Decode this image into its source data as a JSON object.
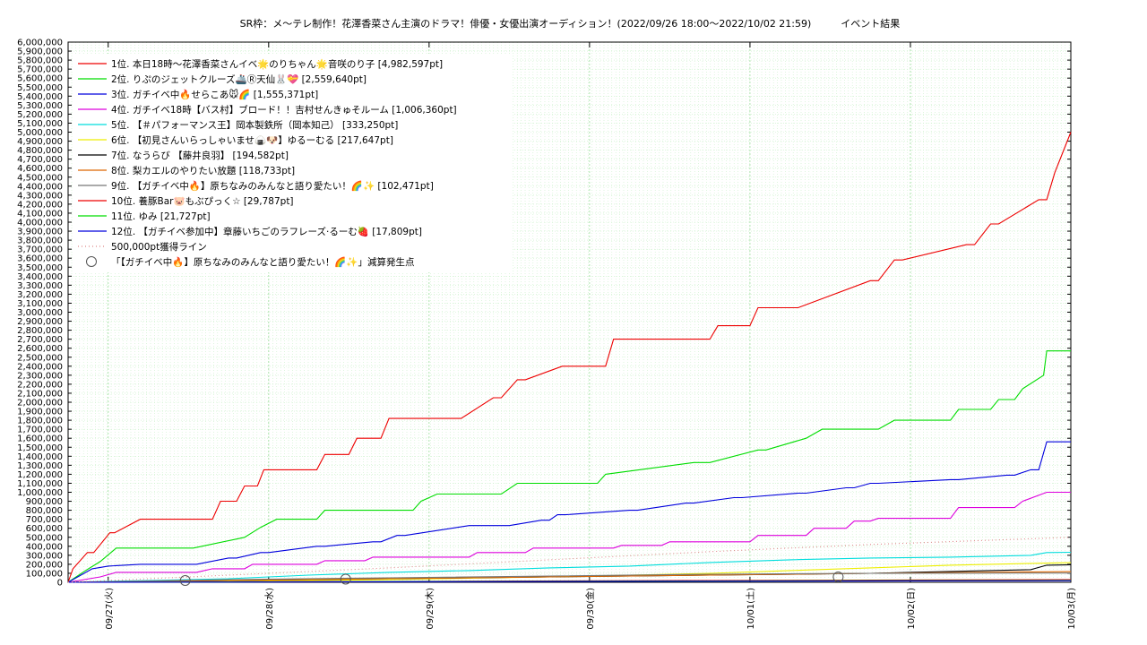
{
  "chart_data": {
    "type": "line",
    "title": "SR枠：メ〜テレ制作！花澤香菜さん主演のドラマ！俳優・女優出演オーディション！(2022/09/26 18:00〜2022/10/02 21:59)　　　イベント結果",
    "ylim": [
      0,
      6000000
    ],
    "yticks": [
      "0",
      "100,000",
      "200,000",
      "300,000",
      "400,000",
      "500,000",
      "600,000",
      "700,000",
      "800,000",
      "900,000",
      "1,000,000",
      "1,100,000",
      "1,200,000",
      "1,300,000",
      "1,400,000",
      "1,500,000",
      "1,600,000",
      "1,700,000",
      "1,800,000",
      "1,900,000",
      "2,000,000",
      "2,100,000",
      "2,200,000",
      "2,300,000",
      "2,400,000",
      "2,500,000",
      "2,600,000",
      "2,700,000",
      "2,800,000",
      "2,900,000",
      "3,000,000",
      "3,100,000",
      "3,200,000",
      "3,300,000",
      "3,400,000",
      "3,500,000",
      "3,600,000",
      "3,700,000",
      "3,800,000",
      "3,900,000",
      "4,000,000",
      "4,100,000",
      "4,200,000",
      "4,300,000",
      "4,400,000",
      "4,500,000",
      "4,600,000",
      "4,700,000",
      "4,800,000",
      "4,900,000",
      "5,000,000",
      "5,100,000",
      "5,200,000",
      "5,300,000",
      "5,400,000",
      "5,500,000",
      "5,600,000",
      "5,700,000",
      "5,800,000",
      "5,900,000",
      "6,000,000"
    ],
    "xlim": [
      0,
      6.25
    ],
    "xticks": [
      {
        "x": 0.25,
        "label": "09/27(火)"
      },
      {
        "x": 1.25,
        "label": "09/28(水)"
      },
      {
        "x": 2.25,
        "label": "09/29(木)"
      },
      {
        "x": 3.25,
        "label": "09/30(金)"
      },
      {
        "x": 4.25,
        "label": "10/01(土)"
      },
      {
        "x": 5.25,
        "label": "10/02(日)"
      },
      {
        "x": 6.25,
        "label": "10/03(月)"
      }
    ],
    "grid": true,
    "legend_position": "top-left",
    "series": [
      {
        "name": "1位. 本日18時〜花澤香菜さんイベ🌟のりちゃん🌟音咲のり子 [4,982,597pt]",
        "color": "#ee0000",
        "step": true,
        "x": [
          0,
          0.03,
          0.12,
          0.16,
          0.26,
          0.29,
          0.45,
          0.9,
          0.95,
          1.05,
          1.1,
          1.18,
          1.22,
          1.55,
          1.6,
          1.75,
          1.8,
          1.95,
          2.0,
          2.25,
          2.4,
          2.45,
          2.65,
          2.7,
          2.8,
          2.85,
          3.08,
          3.12,
          3.25,
          3.35,
          3.4,
          4.0,
          4.05,
          4.25,
          4.3,
          4.55,
          5.0,
          5.05,
          5.15,
          5.2,
          5.6,
          5.65,
          5.75,
          5.8,
          6.05,
          6.1,
          6.15,
          6.25
        ],
        "y": [
          0,
          150000,
          330000,
          330000,
          550000,
          550000,
          700000,
          700000,
          900000,
          900000,
          1070000,
          1070000,
          1250000,
          1250000,
          1420000,
          1420000,
          1600000,
          1600000,
          1820000,
          1820000,
          1820000,
          1820000,
          2050000,
          2050000,
          2250000,
          2250000,
          2400000,
          2400000,
          2400000,
          2400000,
          2700000,
          2700000,
          2850000,
          2850000,
          3050000,
          3050000,
          3350000,
          3350000,
          3580000,
          3580000,
          3750000,
          3750000,
          3980000,
          3980000,
          4250000,
          4250000,
          4550000,
          5000000
        ]
      },
      {
        "name": "2位. りぷのジェットクルーズ🚢Ⓡ天仙🐰💝 [2,559,640pt]",
        "color": "#00dd00",
        "step": true,
        "x": [
          0,
          0.1,
          0.2,
          0.3,
          0.75,
          0.78,
          1.1,
          1.2,
          1.3,
          1.55,
          1.6,
          2.15,
          2.2,
          2.3,
          2.7,
          2.8,
          3.3,
          3.35,
          3.9,
          4.0,
          4.3,
          4.35,
          4.6,
          4.7,
          5.0,
          5.05,
          5.15,
          5.25,
          5.25,
          5.5,
          5.55,
          5.75,
          5.8,
          5.9,
          5.95,
          6.08,
          6.1,
          6.25
        ],
        "y": [
          0,
          120000,
          230000,
          380000,
          380000,
          380000,
          500000,
          610000,
          700000,
          700000,
          800000,
          800000,
          900000,
          980000,
          980000,
          1100000,
          1100000,
          1200000,
          1330000,
          1330000,
          1470000,
          1470000,
          1600000,
          1700000,
          1700000,
          1700000,
          1800000,
          1800000,
          1800000,
          1800000,
          1920000,
          1920000,
          2030000,
          2030000,
          2150000,
          2300000,
          2570000,
          2570000
        ]
      },
      {
        "name": "3位. ガチイベ中🔥せらこあ🐭🌈 [1,555,371pt]",
        "color": "#0000dd",
        "step": true,
        "x": [
          0,
          0.15,
          0.25,
          0.45,
          0.75,
          0.8,
          1.0,
          1.05,
          1.2,
          1.25,
          1.55,
          1.6,
          1.9,
          1.95,
          2.05,
          2.1,
          2.5,
          2.55,
          2.7,
          2.75,
          2.95,
          3.0,
          3.05,
          3.1,
          3.5,
          3.55,
          3.85,
          3.9,
          4.15,
          4.2,
          4.55,
          4.6,
          4.85,
          4.9,
          5.0,
          5.05,
          5.5,
          5.55,
          5.85,
          5.9,
          6.0,
          6.05,
          6.1,
          6.25
        ],
        "y": [
          0,
          150000,
          180000,
          200000,
          200000,
          200000,
          270000,
          270000,
          330000,
          330000,
          400000,
          400000,
          450000,
          450000,
          520000,
          520000,
          630000,
          630000,
          630000,
          630000,
          690000,
          690000,
          750000,
          750000,
          800000,
          800000,
          880000,
          880000,
          940000,
          940000,
          990000,
          990000,
          1050000,
          1050000,
          1100000,
          1100000,
          1140000,
          1140000,
          1190000,
          1190000,
          1250000,
          1250000,
          1560000,
          1560000
        ]
      },
      {
        "name": "4位. ガチイベ18時【バス村】ブロード！！吉村せんきゅそルーム [1,006,360pt]",
        "color": "#dd00dd",
        "step": true,
        "x": [
          0,
          0.2,
          0.3,
          0.8,
          0.9,
          1.1,
          1.15,
          1.55,
          1.6,
          1.85,
          1.9,
          2.5,
          2.55,
          2.85,
          2.9,
          3.4,
          3.45,
          3.7,
          3.75,
          4.25,
          4.3,
          4.6,
          4.65,
          4.85,
          4.9,
          5.0,
          5.05,
          5.5,
          5.55,
          5.9,
          5.95,
          6.1,
          6.25
        ],
        "y": [
          0,
          60000,
          110000,
          110000,
          150000,
          150000,
          200000,
          200000,
          240000,
          240000,
          280000,
          280000,
          330000,
          330000,
          380000,
          380000,
          410000,
          410000,
          450000,
          450000,
          520000,
          520000,
          600000,
          600000,
          680000,
          680000,
          710000,
          710000,
          830000,
          830000,
          900000,
          1000000,
          1000000
        ]
      },
      {
        "name": "5位. 【＃パフォーマンス王】岡本製鉄所（岡本知己） [333,250pt]",
        "color": "#00dddd",
        "x": [
          0,
          0.5,
          1.0,
          1.5,
          2.0,
          2.5,
          3.0,
          3.5,
          4.0,
          4.5,
          5.0,
          5.5,
          6.0,
          6.1,
          6.25
        ],
        "y": [
          0,
          20000,
          40000,
          80000,
          110000,
          130000,
          160000,
          180000,
          220000,
          250000,
          270000,
          280000,
          300000,
          330000,
          333250
        ]
      },
      {
        "name": "6位. 【初見さんいらっしゃいませ🍙🐶】ゆるーむる [217,647pt]",
        "color": "#eeee00",
        "x": [
          0,
          1.0,
          2.0,
          3.0,
          3.5,
          4.0,
          4.5,
          5.0,
          5.5,
          6.0,
          6.25
        ],
        "y": [
          0,
          10000,
          30000,
          60000,
          80000,
          100000,
          130000,
          160000,
          190000,
          210000,
          217647
        ]
      },
      {
        "name": "7位. なうらび 【藤井良羽】 [194,582pt]",
        "color": "#000000",
        "x": [
          0,
          1.0,
          2.0,
          3.0,
          4.0,
          5.0,
          5.5,
          6.0,
          6.1,
          6.25
        ],
        "y": [
          0,
          20000,
          40000,
          60000,
          80000,
          100000,
          120000,
          140000,
          190000,
          194582
        ]
      },
      {
        "name": "8位. 梨カエルのやりたい放題 [118,733pt]",
        "color": "#dd6600",
        "x": [
          0,
          1.0,
          2.0,
          3.0,
          4.0,
          5.0,
          6.0,
          6.25
        ],
        "y": [
          0,
          20000,
          40000,
          60000,
          80000,
          100000,
          115000,
          118733
        ]
      },
      {
        "name": "9位. 【ガチイベ中🔥】原ちなみのみんなと語り愛たい！🌈✨ [102,471pt]",
        "color": "#777777",
        "x": [
          0,
          1.0,
          2.0,
          3.0,
          4.0,
          5.0,
          6.0,
          6.25
        ],
        "y": [
          0,
          30000,
          50000,
          70000,
          90000,
          100000,
          102000,
          102471
        ]
      },
      {
        "name": "10位. 養豚Bar🐷もぶぴっく☆ [29,787pt]",
        "color": "#ee0000",
        "x": [
          0,
          2.0,
          4.0,
          6.25
        ],
        "y": [
          0,
          10000,
          20000,
          29787
        ]
      },
      {
        "name": "11位. ゆみ [21,727pt]",
        "color": "#00dd00",
        "x": [
          0,
          2.0,
          4.0,
          6.25
        ],
        "y": [
          0,
          8000,
          15000,
          21727
        ]
      },
      {
        "name": "12位. 【ガチイベ参加中】章藤いちごのラフレーズ·るーむ🍓 [17,809pt]",
        "color": "#0000dd",
        "x": [
          0,
          2.0,
          4.0,
          6.25
        ],
        "y": [
          0,
          6000,
          12000,
          17809
        ]
      },
      {
        "name": "500,000pt獲得ライン",
        "color": "#dd8888",
        "dotted": true,
        "x": [
          0,
          1.0,
          2.0,
          3.0,
          4.0,
          5.0,
          6.25
        ],
        "y": [
          0,
          80000,
          160000,
          250000,
          340000,
          420000,
          500000
        ]
      }
    ],
    "markers": {
      "name": "「【ガチイベ中🔥】原ちなみのみんなと語り愛たい！🌈✨」減算発生点",
      "color": "#555555",
      "points": [
        {
          "x": 0.73,
          "y": 20000
        },
        {
          "x": 1.73,
          "y": 35000
        },
        {
          "x": 4.8,
          "y": 60000
        }
      ]
    }
  }
}
